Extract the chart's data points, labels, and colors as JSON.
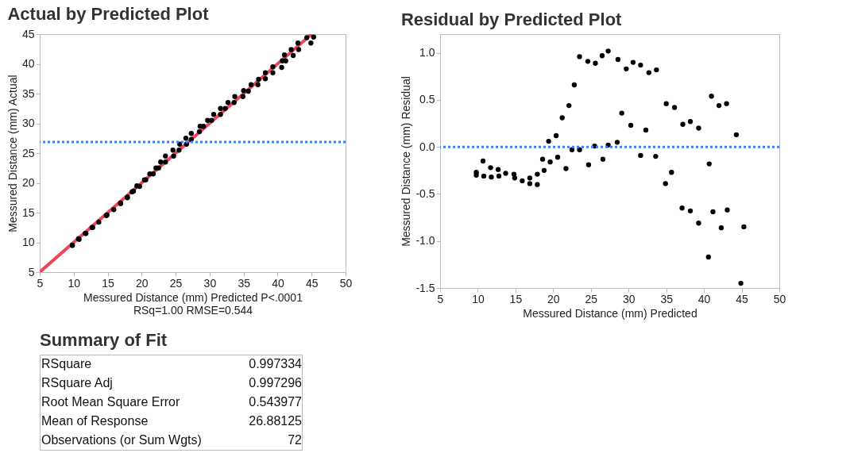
{
  "chart_data": [
    {
      "type": "scatter",
      "title": "Actual by Predicted Plot",
      "xlabel": "Messured Distance (mm) Predicted P<.0001",
      "ylabel": "Messured Distance (mm) Actual",
      "annotations": [
        "RSq=1.00 RMSE=0.544"
      ],
      "xlim": [
        5,
        50
      ],
      "ylim": [
        5,
        45
      ],
      "xticks": [
        5,
        10,
        15,
        20,
        25,
        30,
        35,
        40,
        45,
        50
      ],
      "yticks": [
        5,
        10,
        15,
        20,
        25,
        30,
        35,
        40,
        45
      ],
      "ref_lines": [
        {
          "axis": "y",
          "value": 26.88125,
          "color": "#3b82f6",
          "line_style": "dotted"
        }
      ],
      "series": [
        {
          "type": "line",
          "color": "#f0465a",
          "x": [
            5,
            45
          ],
          "values": [
            5,
            45
          ]
        },
        {
          "color": "#000000",
          "marker": "circle",
          "x": [
            9.8,
            9.8,
            10.7,
            10.8,
            11.7,
            11.8,
            12.7,
            12.8,
            13.7,
            14.8,
            14.9,
            15.9,
            16.9,
            16.9,
            17.9,
            17.9,
            18.6,
            18.8,
            19.3,
            19.7,
            20.4,
            20.6,
            21.2,
            21.7,
            22.1,
            22.5,
            22.8,
            23.5,
            23.5,
            24.6,
            24.7,
            25.5,
            25.6,
            26.5,
            26.6,
            27.3,
            27.3,
            28.6,
            29.7,
            30.6,
            31.6,
            32.7,
            33.7,
            28.5,
            29.1,
            30.3,
            31.6,
            32.3,
            33.6,
            35.0,
            36.1,
            34.9,
            35.7,
            37.2,
            38.2,
            39.3,
            37.1,
            38.2,
            39.3,
            41.0,
            42.0,
            43.0,
            40.7,
            41.2,
            42.3,
            43.1,
            44.3,
            40.6,
            45.3,
            44.9
          ],
          "values": [
            9.5,
            9.5,
            10.6,
            10.5,
            11.5,
            11.5,
            12.5,
            12.5,
            13.4,
            14.5,
            14.6,
            15.5,
            16.6,
            16.5,
            17.6,
            17.5,
            18.5,
            18.6,
            19.5,
            19.4,
            20.5,
            20.5,
            21.5,
            21.5,
            22.5,
            22.5,
            23.5,
            24.5,
            23.5,
            25.5,
            24.5,
            25.5,
            26.5,
            27.5,
            26.5,
            28.3,
            27.3,
            29.5,
            30.5,
            31.5,
            32.5,
            33.5,
            34.5,
            28.6,
            29.5,
            30.5,
            31.5,
            32.5,
            33.5,
            35.5,
            36.5,
            34.5,
            35.4,
            37.4,
            38.5,
            39.5,
            36.5,
            37.5,
            38.5,
            41.5,
            42.4,
            43.5,
            40.5,
            40.5,
            41.4,
            42.4,
            44.4,
            39.4,
            44.5,
            43.5
          ]
        }
      ]
    },
    {
      "type": "scatter",
      "title": "Residual by Predicted Plot",
      "xlabel": "Messured Distance (mm) Predicted",
      "ylabel": "Messured Distance (mm) Residual",
      "xlim": [
        5,
        50
      ],
      "ylim": [
        -1.5,
        1.2
      ],
      "xticks": [
        5,
        10,
        15,
        20,
        25,
        30,
        35,
        40,
        45,
        50
      ],
      "yticks": [
        {
          "value": -1.5,
          "label": "-1.5"
        },
        {
          "value": -1,
          "label": "-1.0"
        },
        {
          "value": -0.5,
          "label": "-0.5"
        },
        {
          "value": 0,
          "label": "0.0"
        },
        {
          "value": 0.5,
          "label": "0.5"
        },
        {
          "value": 1,
          "label": "1.0"
        }
      ],
      "marker": "circle",
      "ref_lines": [
        {
          "axis": "y",
          "value": 0,
          "color": "#3b82f6",
          "line_style": "dotted"
        }
      ],
      "series": [
        {
          "color": "#000000",
          "x": [
            9.8,
            9.8,
            10.7,
            10.8,
            11.7,
            11.8,
            12.7,
            12.8,
            13.7,
            14.8,
            14.9,
            15.9,
            16.9,
            16.9,
            17.9,
            17.9,
            18.6,
            18.8,
            19.4,
            19.6,
            20.4,
            20.6,
            21.2,
            21.7,
            22.1,
            22.5,
            22.8,
            23.5,
            23.5,
            24.6,
            24.7,
            25.5,
            25.6,
            26.5,
            26.6,
            27.3,
            27.3,
            28.6,
            29.7,
            30.6,
            31.6,
            32.7,
            33.7,
            28.5,
            29.1,
            30.3,
            31.6,
            32.3,
            33.6,
            35.0,
            36.1,
            34.9,
            35.7,
            37.2,
            38.2,
            39.3,
            37.1,
            38.2,
            39.3,
            41.0,
            42.0,
            43.0,
            40.7,
            41.2,
            42.3,
            43.1,
            44.3,
            40.6,
            45.3,
            44.9
          ],
          "values": [
            -0.27,
            -0.3,
            -0.15,
            -0.31,
            -0.22,
            -0.32,
            -0.24,
            -0.31,
            -0.28,
            -0.29,
            -0.33,
            -0.36,
            -0.33,
            -0.39,
            -0.29,
            -0.4,
            -0.13,
            -0.25,
            0.06,
            -0.16,
            0.12,
            -0.11,
            0.31,
            -0.23,
            0.44,
            -0.03,
            0.66,
            0.96,
            -0.03,
            0.91,
            -0.19,
            0.01,
            0.89,
            0.97,
            -0.13,
            1.02,
            0.02,
            0.93,
            0.83,
            0.9,
            0.87,
            0.79,
            0.82,
            0.05,
            0.36,
            0.23,
            -0.09,
            0.18,
            -0.1,
            0.46,
            0.42,
            -0.39,
            -0.27,
            0.24,
            0.27,
            0.2,
            -0.65,
            -0.68,
            -0.81,
            0.54,
            0.44,
            0.46,
            -0.18,
            -0.69,
            -0.86,
            -0.67,
            0.13,
            -1.17,
            -0.85,
            -1.45
          ]
        }
      ]
    },
    {
      "type": "other",
      "title": "Summary of Fit",
      "categories": [
        "RSquare",
        "RSquare Adj",
        "Root Mean Square Error",
        "Mean of Response",
        "Observations (or Sum Wgts)"
      ],
      "values": [
        0.997334,
        0.997296,
        0.543977,
        26.88125,
        72
      ],
      "data_labels": true
    }
  ]
}
